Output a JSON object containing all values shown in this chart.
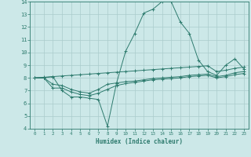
{
  "xlabel": "Humidex (Indice chaleur)",
  "background_color": "#cce8e8",
  "grid_color": "#aacccc",
  "line_color": "#2e7b6e",
  "xlim": [
    -0.5,
    23.5
  ],
  "ylim": [
    4,
    14
  ],
  "xticks": [
    0,
    1,
    2,
    3,
    4,
    5,
    6,
    7,
    8,
    9,
    10,
    11,
    12,
    13,
    14,
    15,
    16,
    17,
    18,
    19,
    20,
    21,
    22,
    23
  ],
  "yticks": [
    4,
    5,
    6,
    7,
    8,
    9,
    10,
    11,
    12,
    13,
    14
  ],
  "curves": [
    {
      "x": [
        0,
        1,
        2,
        3,
        4,
        5,
        6,
        7,
        8,
        9,
        10,
        11,
        12,
        13,
        14,
        15,
        16,
        17,
        18,
        19,
        20,
        21,
        22,
        23
      ],
      "y": [
        8.0,
        8.0,
        8.1,
        7.0,
        6.5,
        6.5,
        6.4,
        6.3,
        4.2,
        7.6,
        10.1,
        11.5,
        13.1,
        13.4,
        14.0,
        14.0,
        12.4,
        11.5,
        9.4,
        8.5,
        8.2,
        9.0,
        9.5,
        8.7
      ]
    },
    {
      "x": [
        0,
        1,
        2,
        3,
        4,
        5,
        6,
        7,
        8,
        9,
        10,
        11,
        12,
        13,
        14,
        15,
        16,
        17,
        18,
        19,
        20,
        21,
        22,
        23
      ],
      "y": [
        8.0,
        8.0,
        7.5,
        7.4,
        7.1,
        6.9,
        6.8,
        7.1,
        7.5,
        7.6,
        7.7,
        7.75,
        7.85,
        7.95,
        8.0,
        8.05,
        8.1,
        8.2,
        8.25,
        8.3,
        8.1,
        8.2,
        8.4,
        8.5
      ]
    },
    {
      "x": [
        0,
        1,
        2,
        3,
        4,
        5,
        6,
        7,
        8,
        9,
        10,
        11,
        12,
        13,
        14,
        15,
        16,
        17,
        18,
        19,
        20,
        21,
        22,
        23
      ],
      "y": [
        8.0,
        8.0,
        7.2,
        7.2,
        6.9,
        6.7,
        6.6,
        6.8,
        7.1,
        7.4,
        7.55,
        7.65,
        7.75,
        7.85,
        7.9,
        7.95,
        8.0,
        8.1,
        8.15,
        8.2,
        8.0,
        8.1,
        8.25,
        8.35
      ]
    },
    {
      "x": [
        0,
        1,
        2,
        3,
        4,
        5,
        6,
        7,
        8,
        9,
        10,
        11,
        12,
        13,
        14,
        15,
        16,
        17,
        18,
        19,
        20,
        21,
        22,
        23
      ],
      "y": [
        8.0,
        8.05,
        8.1,
        8.15,
        8.2,
        8.25,
        8.3,
        8.35,
        8.4,
        8.45,
        8.5,
        8.55,
        8.6,
        8.65,
        8.7,
        8.75,
        8.8,
        8.85,
        8.9,
        8.95,
        8.5,
        8.6,
        8.75,
        8.85
      ]
    }
  ]
}
